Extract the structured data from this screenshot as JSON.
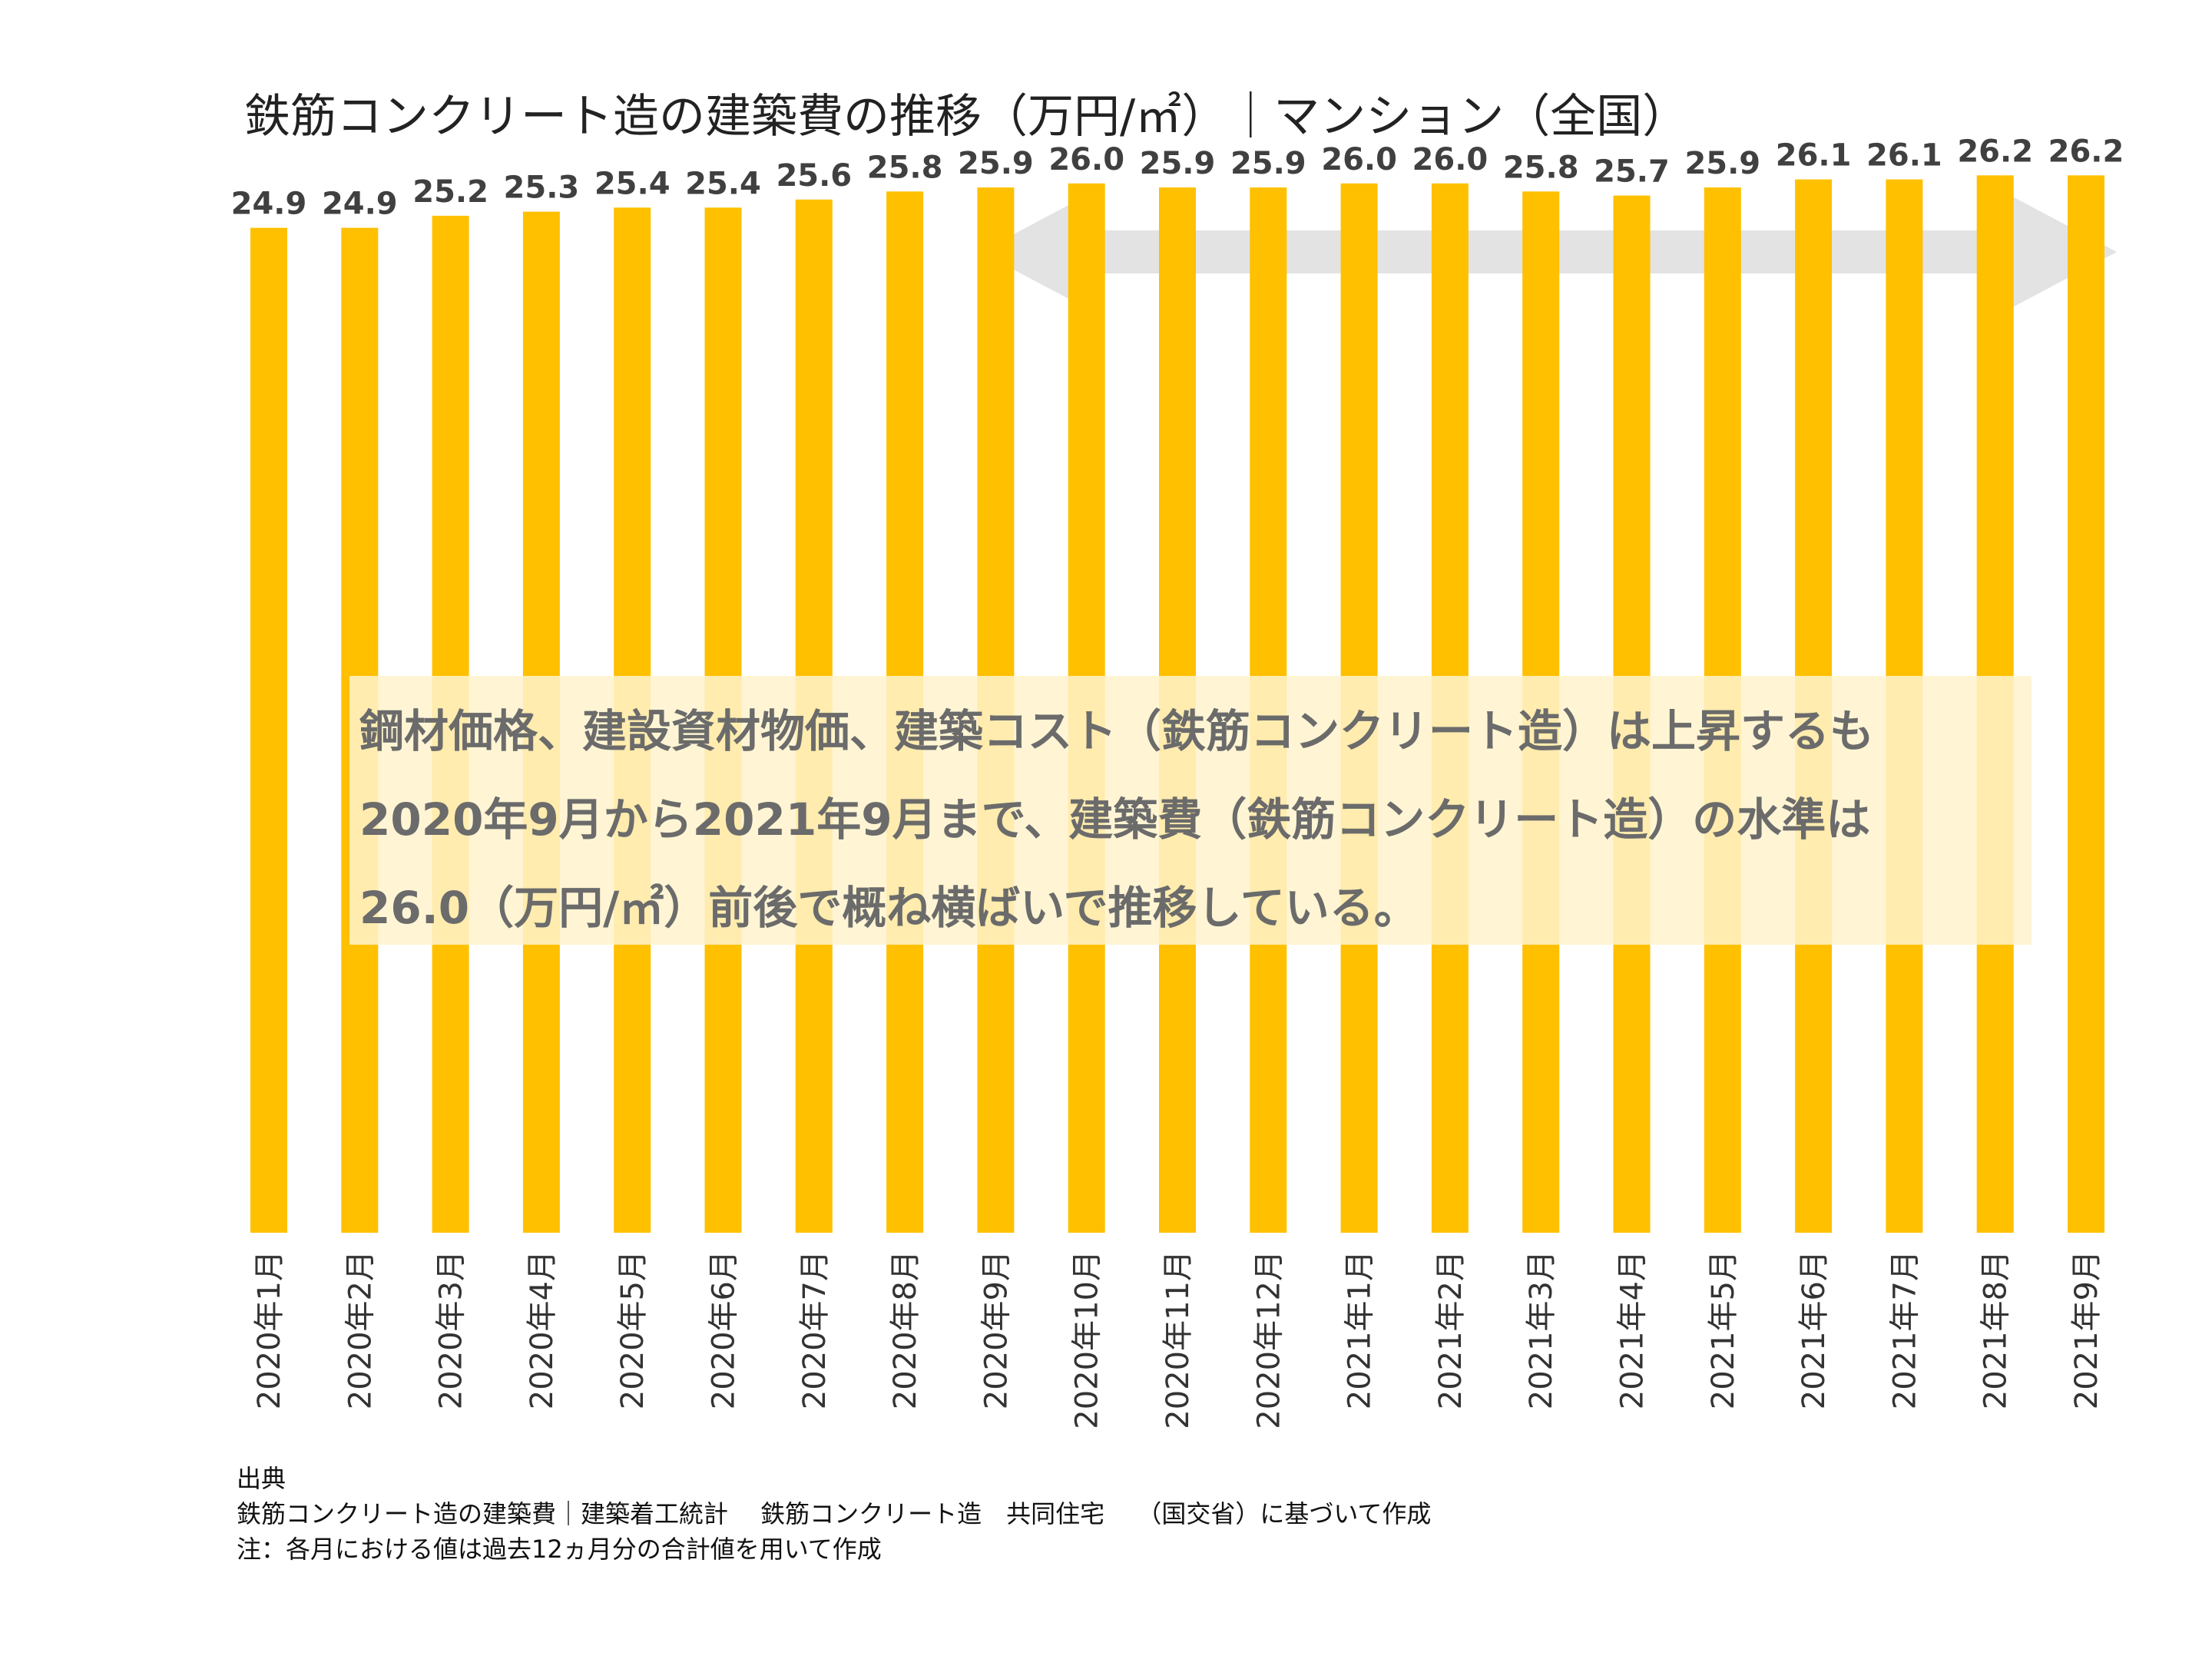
{
  "chart_data": {
    "type": "bar",
    "title": "鉄筋コンクリート造の建築費の推移（万円/㎡）｜マンション（全国）",
    "categories": [
      "2020年1月",
      "2020年2月",
      "2020年3月",
      "2020年4月",
      "2020年5月",
      "2020年6月",
      "2020年7月",
      "2020年8月",
      "2020年9月",
      "2020年10月",
      "2020年11月",
      "2020年12月",
      "2021年1月",
      "2021年2月",
      "2021年3月",
      "2021年4月",
      "2021年5月",
      "2021年6月",
      "2021年7月",
      "2021年8月",
      "2021年9月"
    ],
    "values": [
      24.9,
      24.9,
      25.2,
      25.3,
      25.4,
      25.4,
      25.6,
      25.8,
      25.9,
      26.0,
      25.9,
      25.9,
      26.0,
      26.0,
      25.8,
      25.7,
      25.9,
      26.1,
      26.1,
      26.2,
      26.2
    ],
    "value_labels": [
      "24.9",
      "24.9",
      "25.2",
      "25.3",
      "25.4",
      "25.4",
      "25.6",
      "25.8",
      "25.9",
      "26.0",
      "25.9",
      "25.9",
      "26.0",
      "26.0",
      "25.8",
      "25.7",
      "25.9",
      "26.1",
      "26.1",
      "26.2",
      "26.2"
    ],
    "ylim": [
      0,
      27.5
    ],
    "grid": false,
    "legend": "none",
    "annotation": {
      "lines": [
        "鋼材価格、建設資材物価、建築コスト（鉄筋コンクリート造）は上昇するも",
        "2020年9月から2021年9月まで、建築費（鉄筋コンクリート造）の水準は",
        "26.0（万円/㎡）前後で概ね横ばいで推移している。"
      ],
      "arrow_from": "2020年9月",
      "arrow_to": "2021年9月"
    }
  },
  "notes": {
    "heading": "出典",
    "line1": "鉄筋コンクリート造の建築費｜建築着工統計　 鉄筋コンクリート造　共同住宅　 （国交省）に基づいて作成",
    "line2": "注：各月における値は過去12ヵ月分の合計値を用いて作成"
  },
  "colors": {
    "bar": "#FFC000",
    "arrow": "#E3E3E3",
    "callout_bg": "#FFF3CC",
    "callout_text": "#6B6B6B"
  }
}
